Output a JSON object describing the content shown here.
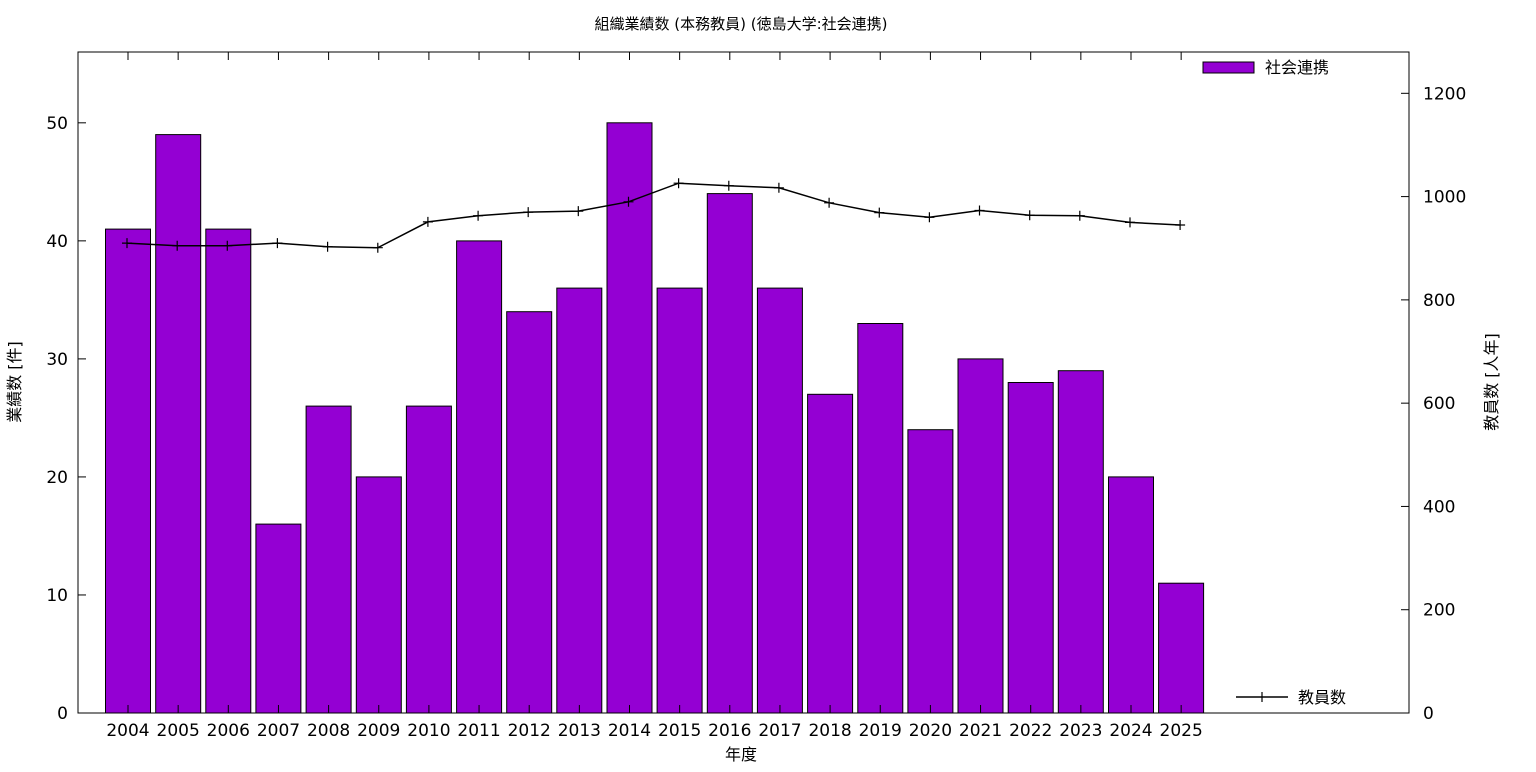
{
  "chart_data": {
    "type": "bar",
    "title": "組織業績数 (本務教員) (徳島大学:社会連携)",
    "xlabel": "年度",
    "ylabel": "業績数 [件]",
    "y2label": "教員数 [人年]",
    "categories": [
      "2004",
      "2005",
      "2006",
      "2007",
      "2008",
      "2009",
      "2010",
      "2011",
      "2012",
      "2013",
      "2014",
      "2015",
      "2016",
      "2017",
      "2018",
      "2019",
      "2020",
      "2021",
      "2022",
      "2023",
      "2024",
      "2025"
    ],
    "series": [
      {
        "name": "社会連携",
        "type": "bar",
        "axis": "left",
        "color": "#9400D3",
        "values": [
          41,
          49,
          41,
          16,
          26,
          20,
          26,
          40,
          34,
          36,
          50,
          36,
          44,
          36,
          27,
          33,
          24,
          30,
          28,
          29,
          20,
          11
        ]
      },
      {
        "name": "教員数",
        "type": "line",
        "axis": "right",
        "color": "#000000",
        "marker": "plus",
        "values": [
          910,
          905,
          905,
          910,
          903,
          901,
          951,
          963,
          970,
          972,
          990,
          1026,
          1021,
          1017,
          988,
          969,
          960,
          973,
          964,
          963,
          950,
          945
        ]
      }
    ],
    "yticks": [
      "0",
      "10",
      "20",
      "30",
      "40",
      "50"
    ],
    "y2ticks": [
      "0",
      "200",
      "400",
      "600",
      "800",
      "1000",
      "1200"
    ],
    "ylim": [
      0,
      56
    ],
    "y2lim": [
      0,
      1280
    ],
    "legend_placement": "top-right (bars), bottom-right (line)",
    "grid": false
  }
}
